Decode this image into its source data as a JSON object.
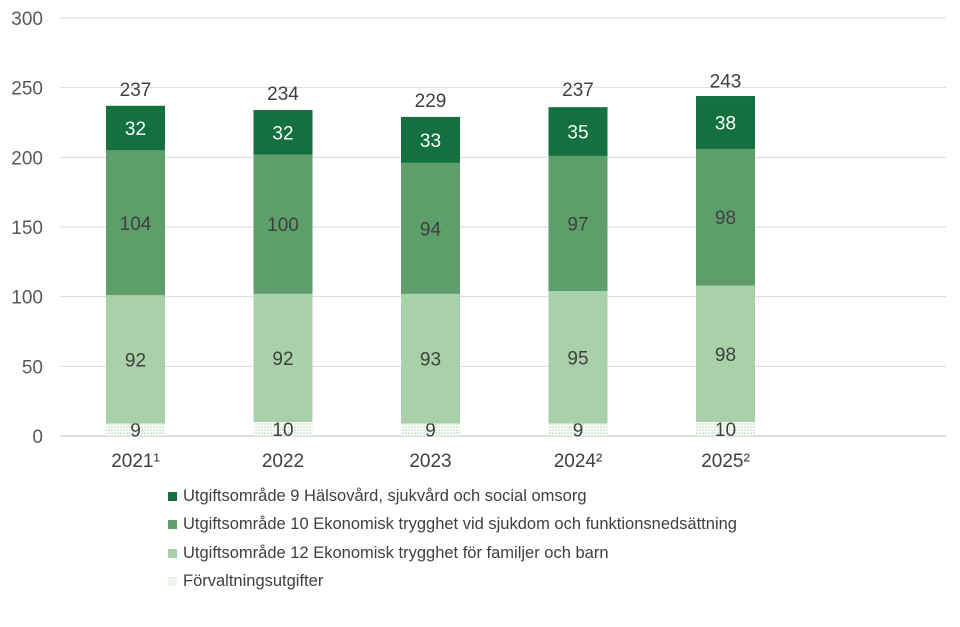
{
  "chart_data": {
    "type": "bar",
    "stacked": true,
    "categories": [
      "2021¹",
      "2022",
      "2023",
      "2024²",
      "2025²"
    ],
    "ylim": [
      0,
      300
    ],
    "yticks": [
      0,
      50,
      100,
      150,
      200,
      250,
      300
    ],
    "grid": true,
    "legend_position": "bottom",
    "series": [
      {
        "name": "Förvaltningsutgifter",
        "values": [
          9,
          10,
          9,
          9,
          10
        ],
        "color": "#d9ecd9",
        "label_color": "#404040"
      },
      {
        "name": "Utgiftsområde 12 Ekonomisk trygghet för familjer och barn",
        "values": [
          92,
          92,
          93,
          95,
          98
        ],
        "color": "#a9d1a9",
        "label_color": "#404040"
      },
      {
        "name": "Utgiftsområde 10 Ekonomisk trygghet vid sjukdom och funktionsnedsättning",
        "values": [
          104,
          100,
          94,
          97,
          98
        ],
        "color": "#5e9e6b",
        "label_color": "#404040"
      },
      {
        "name": "Utgiftsområde 9 Hälsovård, sjukvård och social omsorg",
        "values": [
          32,
          32,
          33,
          35,
          38
        ],
        "color": "#13713f",
        "label_color": "#ffffff"
      }
    ],
    "totals": [
      237,
      234,
      229,
      237,
      243
    ]
  }
}
